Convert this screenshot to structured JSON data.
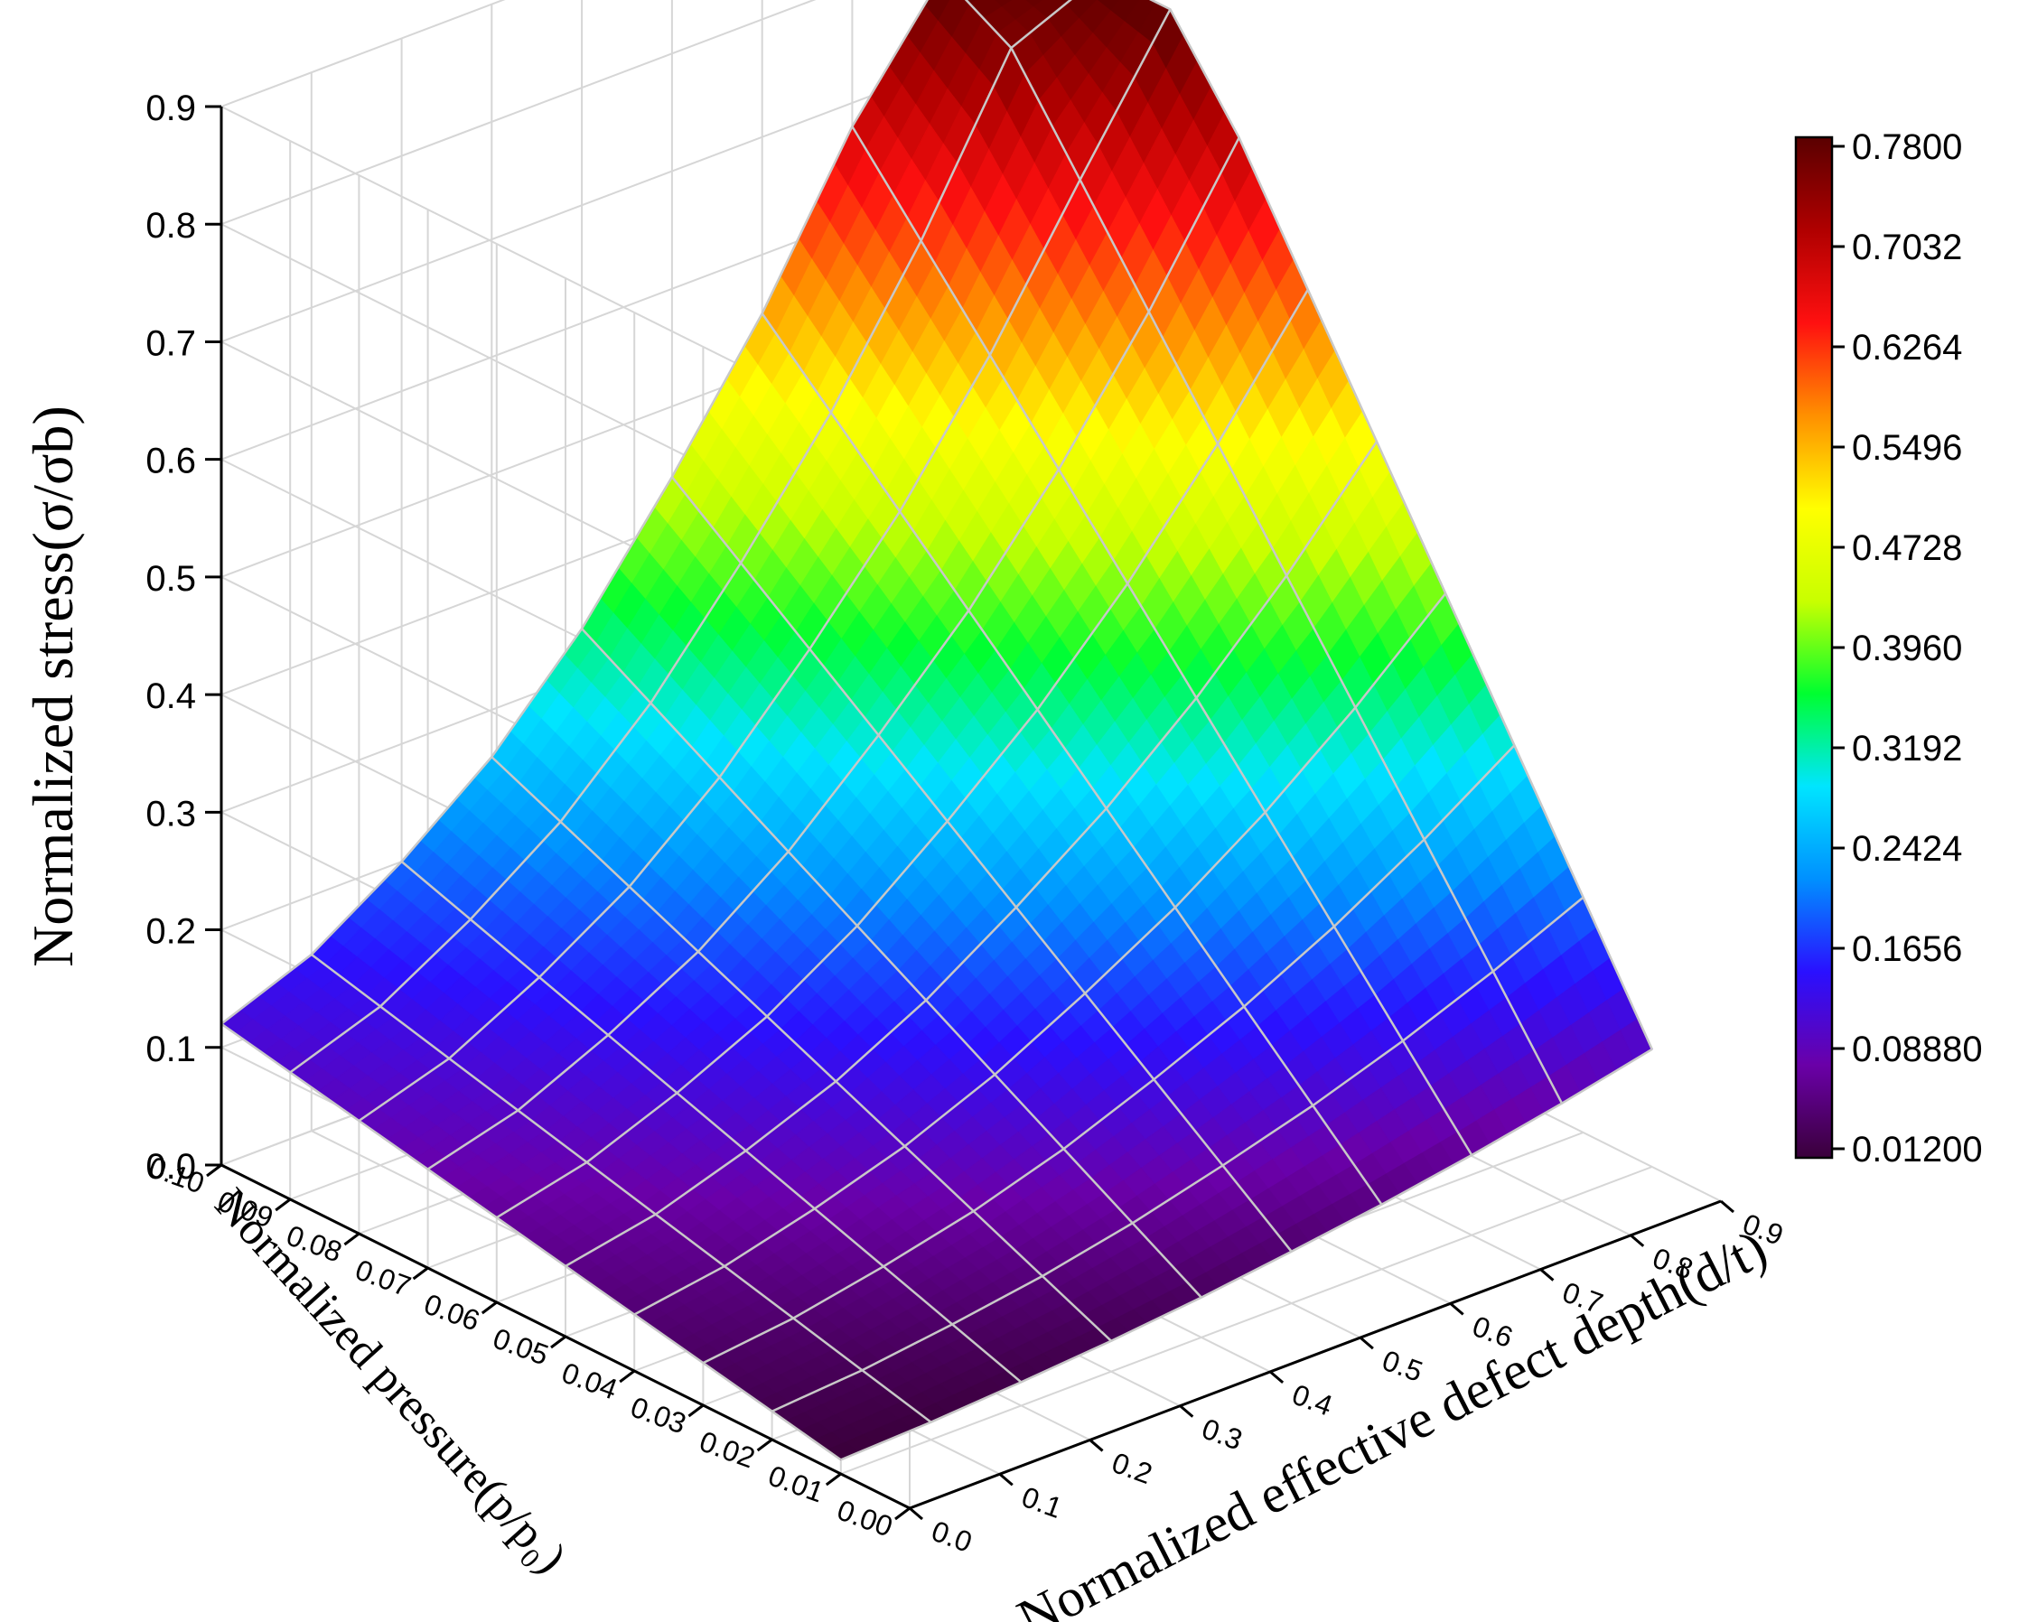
{
  "chart_data": {
    "type": "surface3d",
    "title": "",
    "xlabel": "Normalized effective defect depth(d/t)",
    "ylabel": "Normalized pressure(p/p₀)",
    "zlabel": "Normalized stress(σ/σb)",
    "x_ticks": [
      "0.0",
      "0.1",
      "0.2",
      "0.3",
      "0.4",
      "0.5",
      "0.6",
      "0.7",
      "0.8",
      "0.9"
    ],
    "y_ticks": [
      "0.00",
      "0.01",
      "0.02",
      "0.03",
      "0.04",
      "0.05",
      "0.06",
      "0.07",
      "0.08",
      "0.09",
      "0.10"
    ],
    "z_ticks": [
      "0.0",
      "0.1",
      "0.2",
      "0.3",
      "0.4",
      "0.5",
      "0.6",
      "0.7",
      "0.8",
      "0.9"
    ],
    "xlim": [
      0,
      0.9
    ],
    "ylim": [
      0,
      0.1
    ],
    "zlim": [
      0,
      0.9
    ],
    "x": [
      0.0,
      0.1,
      0.2,
      0.3,
      0.4,
      0.5,
      0.6,
      0.7,
      0.8,
      0.9
    ],
    "y": [
      0.01,
      0.02,
      0.03,
      0.04,
      0.05,
      0.06,
      0.07,
      0.08,
      0.09,
      0.1
    ],
    "z": [
      [
        0.012,
        0.015,
        0.02,
        0.026,
        0.034,
        0.044,
        0.055,
        0.068,
        0.083,
        0.1
      ],
      [
        0.024,
        0.03,
        0.04,
        0.052,
        0.068,
        0.088,
        0.11,
        0.136,
        0.166,
        0.2
      ],
      [
        0.036,
        0.045,
        0.06,
        0.078,
        0.102,
        0.132,
        0.165,
        0.204,
        0.249,
        0.3
      ],
      [
        0.048,
        0.06,
        0.08,
        0.104,
        0.136,
        0.176,
        0.22,
        0.272,
        0.332,
        0.4
      ],
      [
        0.06,
        0.075,
        0.1,
        0.13,
        0.17,
        0.22,
        0.275,
        0.34,
        0.415,
        0.5
      ],
      [
        0.072,
        0.09,
        0.12,
        0.156,
        0.204,
        0.264,
        0.33,
        0.408,
        0.498,
        0.6
      ],
      [
        0.084,
        0.105,
        0.14,
        0.182,
        0.238,
        0.308,
        0.385,
        0.476,
        0.581,
        0.7
      ],
      [
        0.096,
        0.12,
        0.16,
        0.208,
        0.272,
        0.352,
        0.44,
        0.544,
        0.664,
        0.78
      ],
      [
        0.108,
        0.135,
        0.18,
        0.234,
        0.306,
        0.396,
        0.495,
        0.612,
        0.747,
        0.78
      ],
      [
        0.12,
        0.15,
        0.2,
        0.26,
        0.34,
        0.44,
        0.55,
        0.68,
        0.78,
        0.78
      ]
    ],
    "colorbar": {
      "ticks": [
        "0.01200",
        "0.08880",
        "0.1656",
        "0.2424",
        "0.3192",
        "0.3960",
        "0.4728",
        "0.5496",
        "0.6264",
        "0.7032",
        "0.7800"
      ],
      "min": 0.012,
      "max": 0.78,
      "colormap": [
        "#3a003a",
        "#6a00a8",
        "#2a10ff",
        "#0090ff",
        "#00e5ff",
        "#00ff30",
        "#c8ff00",
        "#ffff00",
        "#ff9000",
        "#ff1010",
        "#b00000",
        "#5a0000"
      ]
    },
    "grid": true,
    "legend": "colorbar-right"
  }
}
